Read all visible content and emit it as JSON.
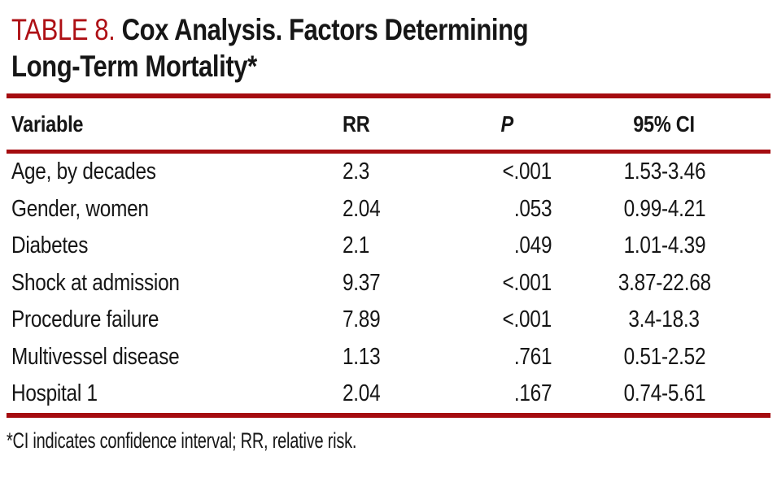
{
  "title": {
    "label": "TABLE 8.",
    "line1": "Cox Analysis. Factors Determining",
    "line2": "Long-Term Mortality*"
  },
  "table": {
    "columns": [
      {
        "key": "variable",
        "label": "Variable"
      },
      {
        "key": "rr",
        "label": "RR"
      },
      {
        "key": "p",
        "label": "P"
      },
      {
        "key": "ci",
        "label": "95% CI"
      }
    ],
    "rows": [
      {
        "variable": "Age, by decades",
        "rr": "2.3",
        "p": "<.001",
        "ci": "1.53-3.46"
      },
      {
        "variable": "Gender, women",
        "rr": "2.04",
        "p": ".053",
        "ci": "0.99-4.21"
      },
      {
        "variable": "Diabetes",
        "rr": "2.1",
        "p": ".049",
        "ci": "1.01-4.39"
      },
      {
        "variable": "Shock at admission",
        "rr": "9.37",
        "p": "<.001",
        "ci": "3.87-22.68"
      },
      {
        "variable": "Procedure failure",
        "rr": "7.89",
        "p": "<.001",
        "ci": "3.4-18.3"
      },
      {
        "variable": "Multivessel disease",
        "rr": "1.13",
        "p": ".761",
        "ci": "0.51-2.52"
      },
      {
        "variable": "Hospital 1",
        "rr": "2.04",
        "p": ".167",
        "ci": "0.74-5.61"
      }
    ]
  },
  "footnote": "*CI indicates confidence interval; RR, relative risk.",
  "colors": {
    "accent_red_text": "#AE1015",
    "rule_red": "#A50C10",
    "text": "#161616",
    "background": "#FFFFFF"
  }
}
